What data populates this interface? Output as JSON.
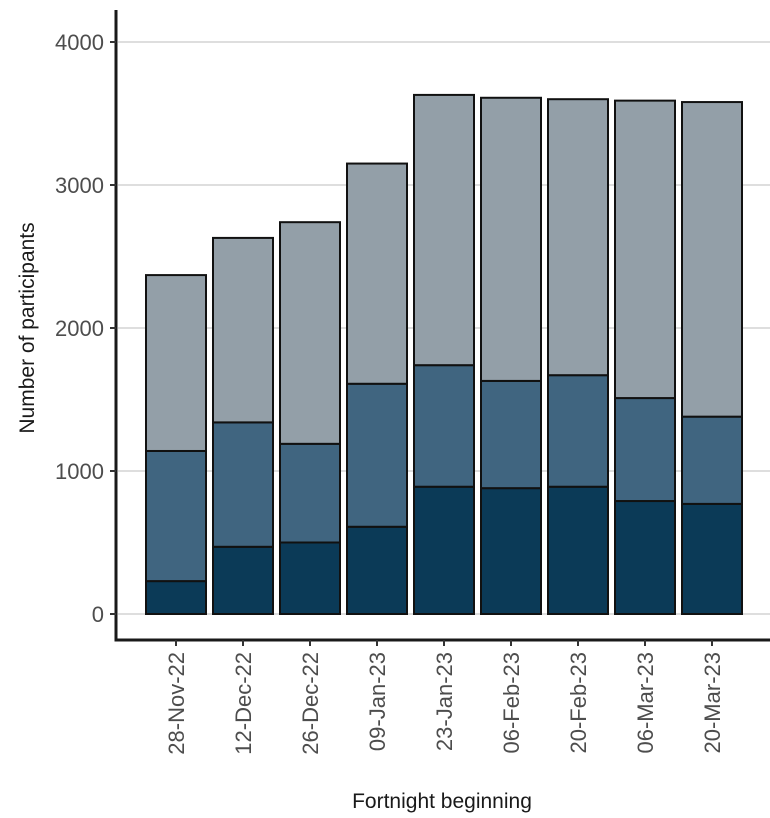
{
  "chart_data": {
    "type": "bar",
    "stacked": true,
    "title": "",
    "xlabel": "Fortnight beginning",
    "ylabel": "Number of participants",
    "ylim": [
      0,
      4000
    ],
    "yticks": [
      0,
      1000,
      2000,
      3000,
      4000
    ],
    "grid": "horizontal major",
    "legend": "none visible",
    "categories": [
      "28-Nov-22",
      "12-Dec-22",
      "26-Dec-22",
      "09-Jan-23",
      "23-Jan-23",
      "06-Feb-23",
      "20-Feb-23",
      "06-Mar-23",
      "20-Mar-23"
    ],
    "series": [
      {
        "color": "#0b3a57",
        "values": [
          230,
          470,
          500,
          610,
          890,
          880,
          890,
          790,
          770
        ]
      },
      {
        "color": "#406580",
        "values": [
          910,
          870,
          690,
          1000,
          850,
          750,
          780,
          720,
          610
        ]
      },
      {
        "color": "#939fa8",
        "values": [
          1230,
          1290,
          1550,
          1540,
          1890,
          1980,
          1930,
          2080,
          2200
        ]
      }
    ]
  }
}
